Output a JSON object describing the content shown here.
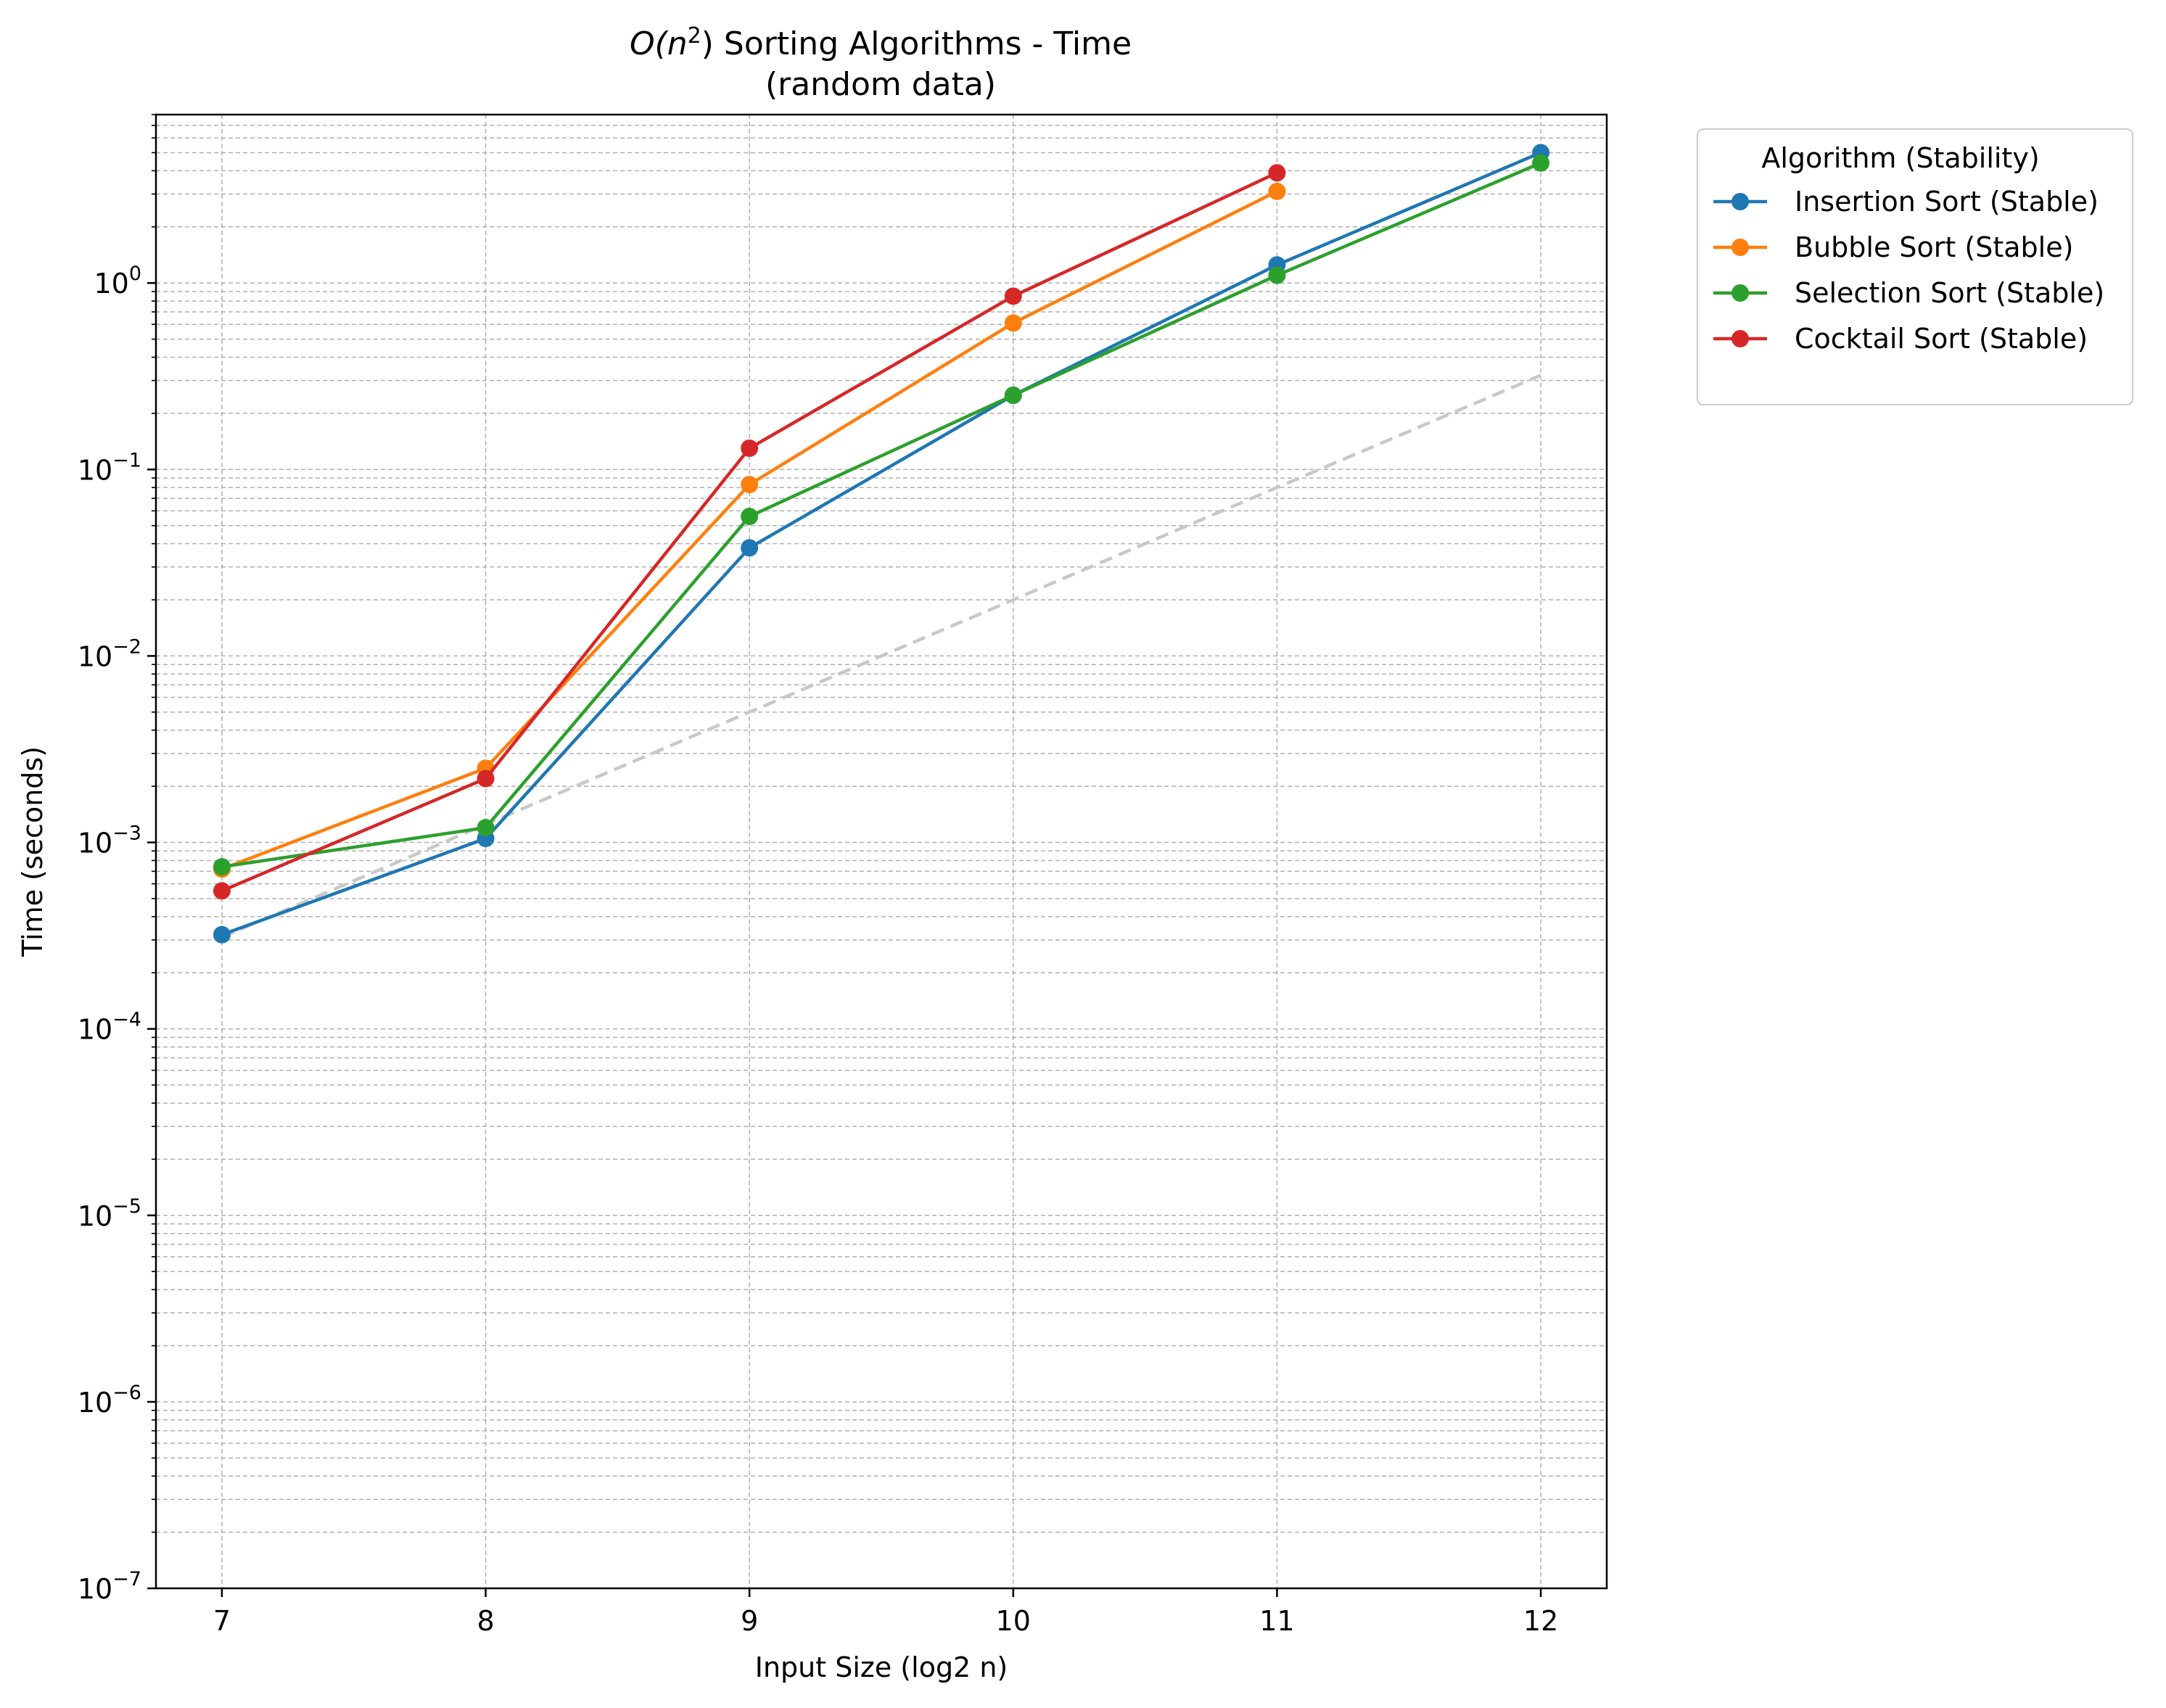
{
  "chart_data": {
    "type": "line",
    "title": {
      "line1_prefix": "O(n",
      "line1_sup": "2",
      "line1_suffix": ") Sorting Algorithms - Time",
      "line2": "(random data)"
    },
    "xlabel": "Input Size (log2 n)",
    "ylabel": "Time (seconds)",
    "y_scale": "log",
    "xlim": [
      6.75,
      12.25
    ],
    "ylim": [
      1e-07,
      8
    ],
    "x_ticks": [
      {
        "value": 7,
        "label": "7"
      },
      {
        "value": 8,
        "label": "8"
      },
      {
        "value": 9,
        "label": "9"
      },
      {
        "value": 10,
        "label": "10"
      },
      {
        "value": 11,
        "label": "11"
      },
      {
        "value": 12,
        "label": "12"
      }
    ],
    "y_ticks": [
      {
        "value": 1e-07,
        "base": "10",
        "exp": "−7"
      },
      {
        "value": 1e-06,
        "base": "10",
        "exp": "−6"
      },
      {
        "value": 1e-05,
        "base": "10",
        "exp": "−5"
      },
      {
        "value": 0.0001,
        "base": "10",
        "exp": "−4"
      },
      {
        "value": 0.001,
        "base": "10",
        "exp": "−3"
      },
      {
        "value": 0.01,
        "base": "10",
        "exp": "−2"
      },
      {
        "value": 0.1,
        "base": "10",
        "exp": "−1"
      },
      {
        "value": 1,
        "base": "10",
        "exp": "0"
      }
    ],
    "grid": true,
    "legend_title": "Algorithm (Stability)",
    "legend_placement": "outside-top-right",
    "series": [
      {
        "name": "Insertion Sort (Stable)",
        "color": "#1f77b4",
        "x": [
          7,
          8,
          9,
          10,
          11,
          12
        ],
        "y": [
          0.00032,
          0.00105,
          0.038,
          0.25,
          1.25,
          5.0
        ]
      },
      {
        "name": "Bubble Sort (Stable)",
        "color": "#ff7f0e",
        "x": [
          7,
          8,
          9,
          10,
          11
        ],
        "y": [
          0.00072,
          0.0025,
          0.083,
          0.61,
          3.1
        ]
      },
      {
        "name": "Selection Sort (Stable)",
        "color": "#2ca02c",
        "x": [
          7,
          8,
          9,
          10,
          11,
          12
        ],
        "y": [
          0.00074,
          0.0012,
          0.056,
          0.25,
          1.1,
          4.4
        ]
      },
      {
        "name": "Cocktail Sort (Stable)",
        "color": "#d62728",
        "x": [
          7,
          8,
          9,
          10,
          11
        ],
        "y": [
          0.00055,
          0.0022,
          0.13,
          0.85,
          3.9
        ]
      }
    ],
    "reference_line": {
      "style": "dashed",
      "color": "#c8c8c8",
      "x": [
        7,
        8,
        9,
        10,
        11,
        12
      ],
      "y": [
        0.00031,
        0.00125,
        0.005,
        0.02,
        0.08,
        0.32
      ]
    }
  }
}
